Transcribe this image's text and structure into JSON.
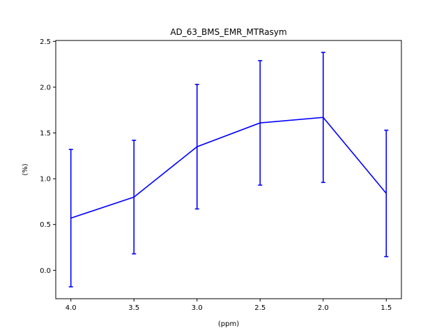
{
  "chart_data": {
    "type": "line",
    "title": "AD_63_BMS_EMR_MTRasym",
    "xlabel": "(ppm)",
    "ylabel": "(%)",
    "x_reversed": true,
    "xlim": [
      4.12,
      1.38
    ],
    "ylim": [
      -0.31,
      2.51
    ],
    "x_ticks": [
      4.0,
      3.5,
      3.0,
      2.5,
      2.0,
      1.5
    ],
    "x_tick_labels": [
      "4.0",
      "3.5",
      "3.0",
      "2.5",
      "2.0",
      "1.5"
    ],
    "y_ticks": [
      0.0,
      0.5,
      1.0,
      1.5,
      2.0,
      2.5
    ],
    "y_tick_labels": [
      "0.0",
      "0.5",
      "1.0",
      "1.5",
      "2.0",
      "2.5"
    ],
    "grid": false,
    "series": [
      {
        "color": "#0000ff",
        "x": [
          4.0,
          3.5,
          3.0,
          2.5,
          2.0,
          1.5
        ],
        "y": [
          0.57,
          0.8,
          1.35,
          1.61,
          1.67,
          0.84
        ],
        "yerr": [
          0.75,
          0.62,
          0.68,
          0.68,
          0.71,
          0.69
        ]
      }
    ]
  }
}
